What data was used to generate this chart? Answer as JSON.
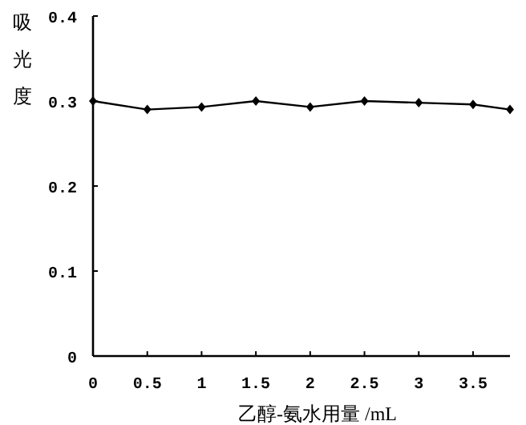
{
  "chart_data": {
    "type": "line",
    "xlabel": "乙醇-氨水用量 /mL",
    "ylabel": "吸光度",
    "x": [
      0,
      0.5,
      1,
      1.5,
      2,
      2.5,
      3,
      3.5,
      3.84
    ],
    "series": [
      {
        "color": "#000000",
        "values": [
          0.3,
          0.29,
          0.293,
          0.3,
          0.293,
          0.3,
          0.298,
          0.296,
          0.29
        ]
      }
    ],
    "xlim": [
      0,
      3.84
    ],
    "xticks": [
      0,
      0.5,
      1,
      1.5,
      2,
      2.5,
      3,
      3.5
    ],
    "ylim": [
      0,
      0.4
    ],
    "yticks": [
      0,
      0.1,
      0.2,
      0.3,
      0.4
    ],
    "marker": "diamond",
    "line_style": "solid"
  }
}
